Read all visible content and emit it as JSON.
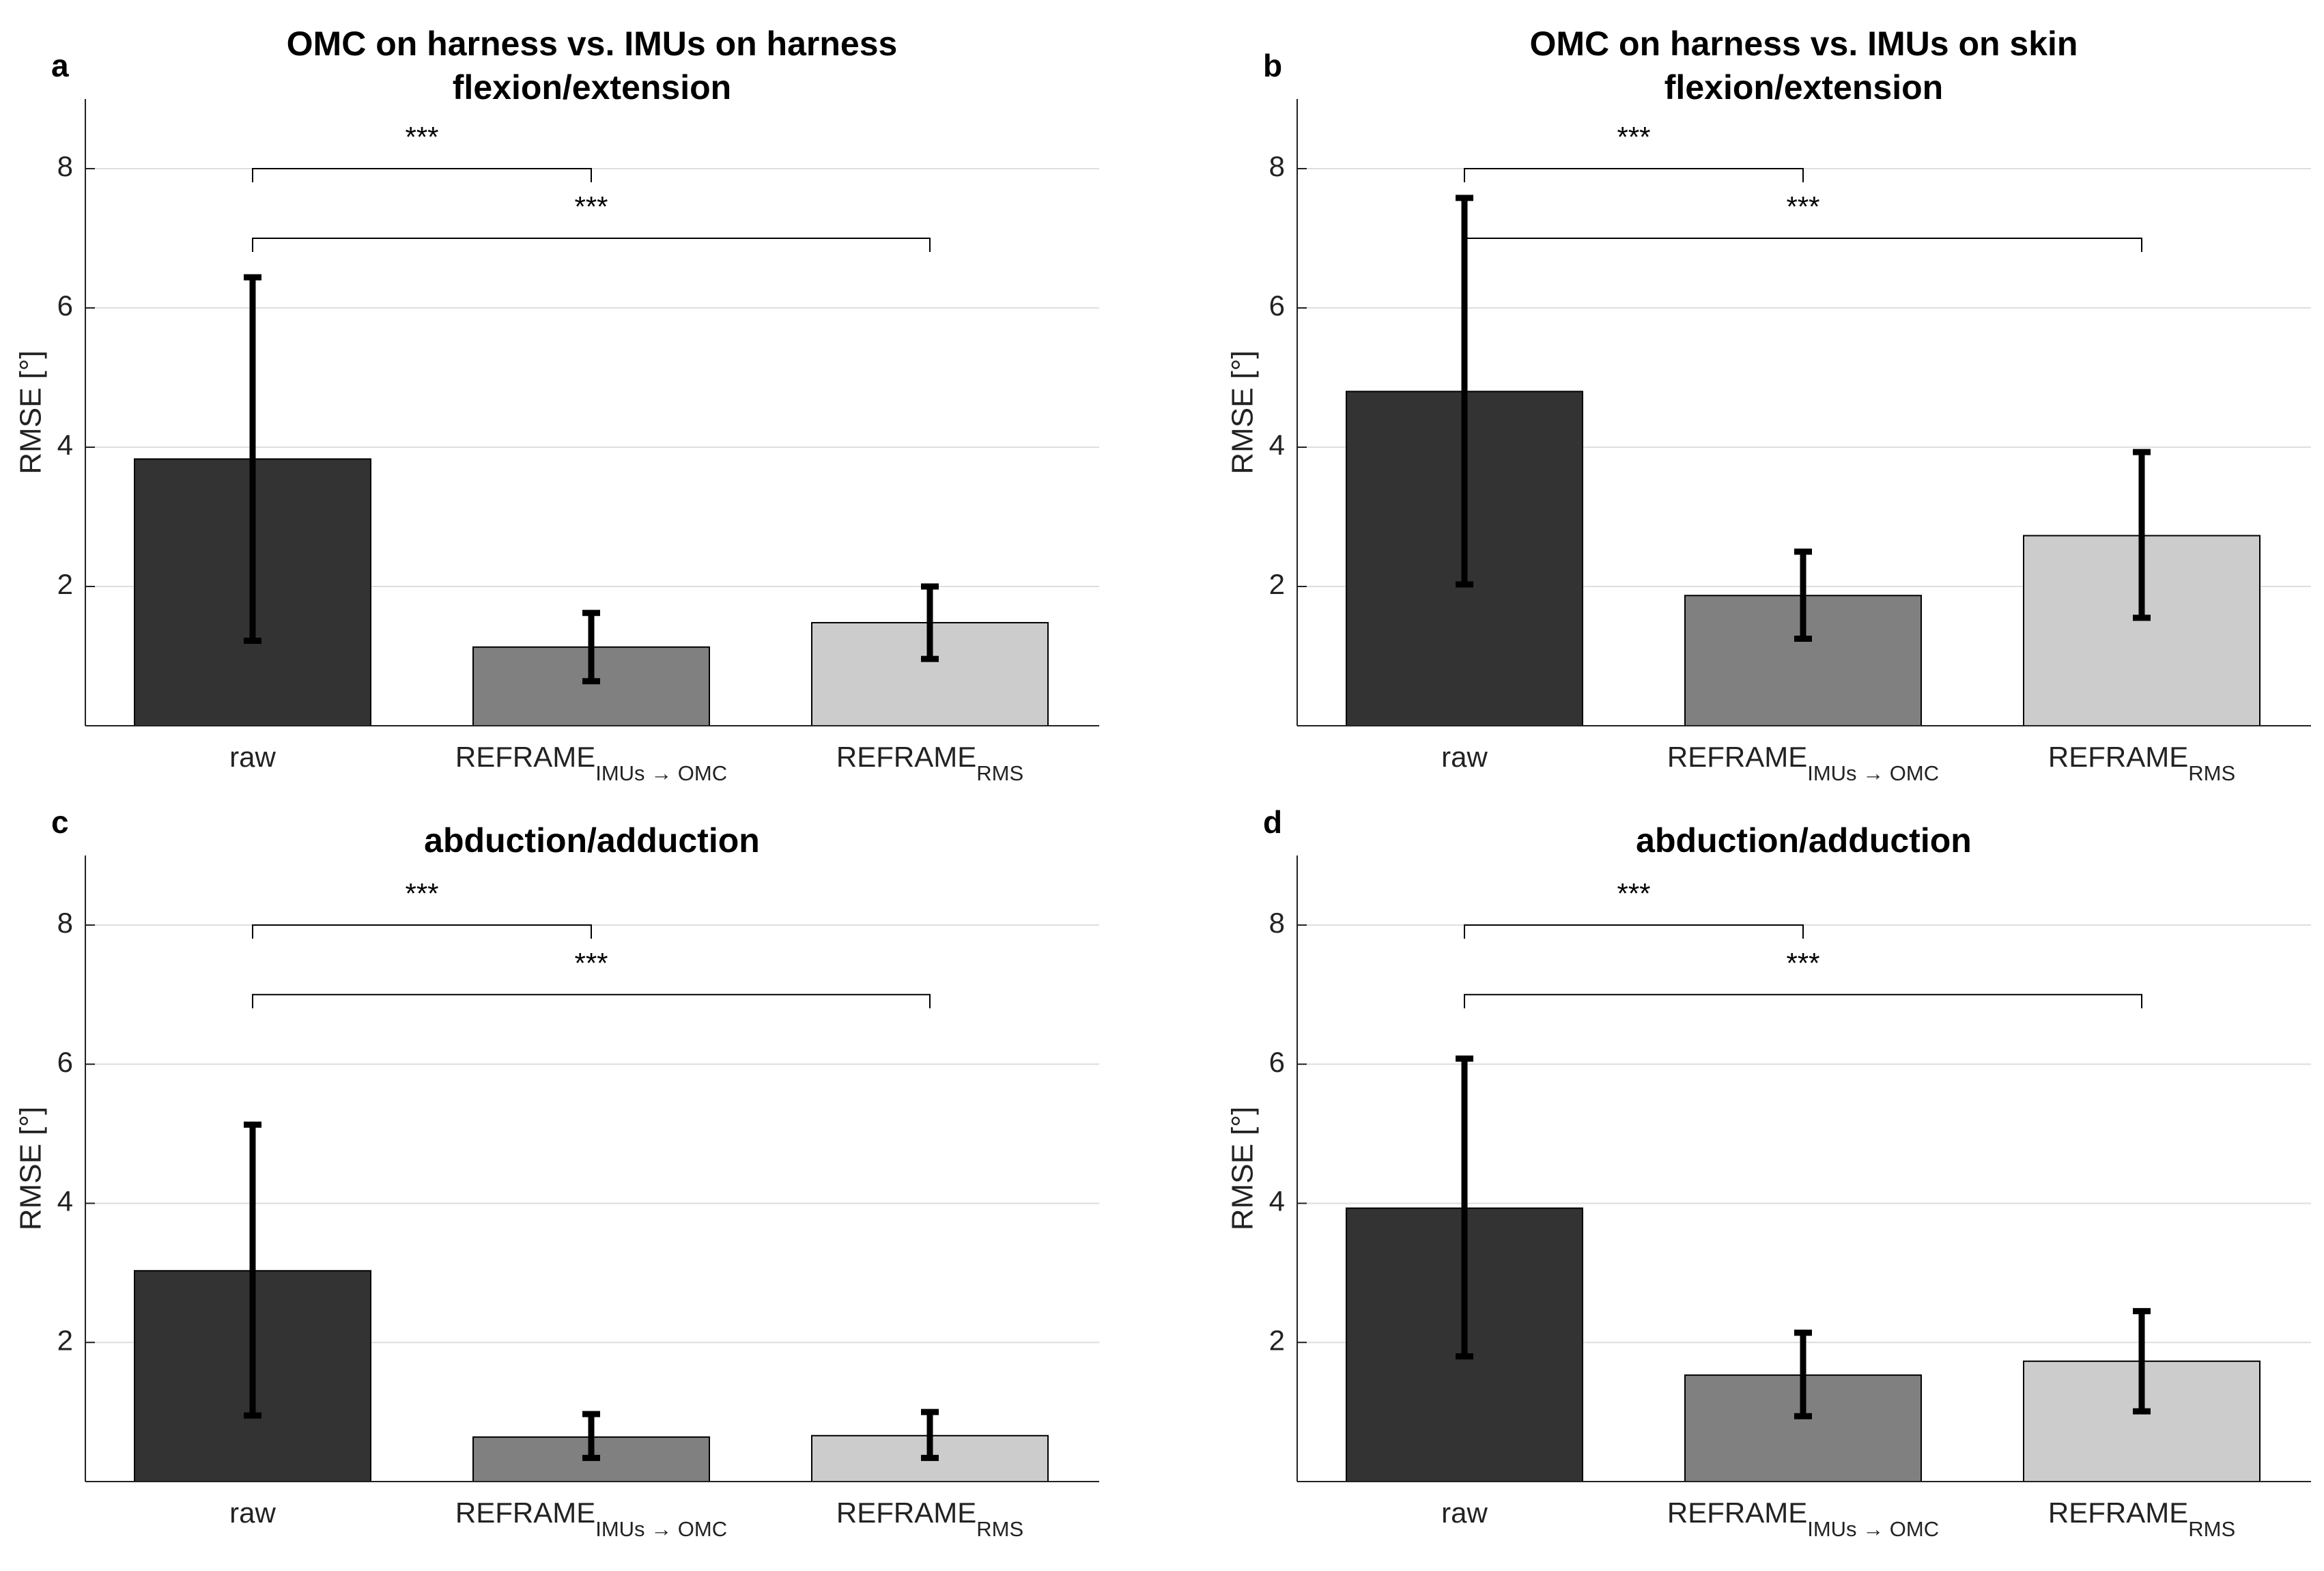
{
  "chart_data": [
    {
      "type": "bar",
      "panel": "a",
      "title": [
        "OMC on harness vs. IMUs on harness",
        "flexion/extension"
      ],
      "ylabel": "RMSE [°]",
      "ylim": [
        0,
        9
      ],
      "yticks": [
        2,
        4,
        6,
        8
      ],
      "categories": [
        {
          "main": "raw",
          "sub": ""
        },
        {
          "main": "REFRAME",
          "sub": "IMUs → OMC"
        },
        {
          "main": "REFRAME",
          "sub": "RMS"
        }
      ],
      "values": [
        3.83,
        1.13,
        1.48
      ],
      "err_low": [
        1.22,
        0.64,
        0.96
      ],
      "err_high": [
        6.44,
        1.62,
        2.0
      ],
      "colors": [
        "#333333",
        "#808080",
        "#cccccc"
      ],
      "significance": [
        {
          "from": 0,
          "to": 1,
          "y": 8,
          "label": "***"
        },
        {
          "from": 0,
          "to": 2,
          "y": 7,
          "label": "***"
        }
      ]
    },
    {
      "type": "bar",
      "panel": "b",
      "title": [
        "OMC on harness vs. IMUs on skin",
        "flexion/extension"
      ],
      "ylabel": "RMSE [°]",
      "ylim": [
        0,
        9
      ],
      "yticks": [
        2,
        4,
        6,
        8
      ],
      "categories": [
        {
          "main": "raw",
          "sub": ""
        },
        {
          "main": "REFRAME",
          "sub": "IMUs → OMC"
        },
        {
          "main": "REFRAME",
          "sub": "RMS"
        }
      ],
      "values": [
        4.8,
        1.87,
        2.73
      ],
      "err_low": [
        2.03,
        1.25,
        1.55
      ],
      "err_high": [
        7.58,
        2.5,
        3.93
      ],
      "colors": [
        "#333333",
        "#808080",
        "#cccccc"
      ],
      "significance": [
        {
          "from": 0,
          "to": 1,
          "y": 8,
          "label": "***"
        },
        {
          "from": 0,
          "to": 2,
          "y": 7,
          "label": "***"
        }
      ]
    },
    {
      "type": "bar",
      "panel": "c",
      "title": [
        "abduction/adduction"
      ],
      "ylabel": "RMSE [°]",
      "ylim": [
        0,
        9
      ],
      "yticks": [
        2,
        4,
        6,
        8
      ],
      "categories": [
        {
          "main": "raw",
          "sub": ""
        },
        {
          "main": "REFRAME",
          "sub": "IMUs → OMC"
        },
        {
          "main": "REFRAME",
          "sub": "RMS"
        }
      ],
      "values": [
        3.03,
        0.64,
        0.66
      ],
      "err_low": [
        0.95,
        0.34,
        0.34
      ],
      "err_high": [
        5.13,
        0.97,
        1.0
      ],
      "colors": [
        "#333333",
        "#808080",
        "#cccccc"
      ],
      "significance": [
        {
          "from": 0,
          "to": 1,
          "y": 8,
          "label": "***"
        },
        {
          "from": 0,
          "to": 2,
          "y": 7,
          "label": "***"
        }
      ]
    },
    {
      "type": "bar",
      "panel": "d",
      "title": [
        "abduction/adduction"
      ],
      "ylabel": "RMSE [°]",
      "ylim": [
        0,
        9
      ],
      "yticks": [
        2,
        4,
        6,
        8
      ],
      "categories": [
        {
          "main": "raw",
          "sub": ""
        },
        {
          "main": "REFRAME",
          "sub": "IMUs → OMC"
        },
        {
          "main": "REFRAME",
          "sub": "RMS"
        }
      ],
      "values": [
        3.93,
        1.53,
        1.73
      ],
      "err_low": [
        1.8,
        0.94,
        1.01
      ],
      "err_high": [
        6.08,
        2.14,
        2.45
      ],
      "colors": [
        "#333333",
        "#808080",
        "#cccccc"
      ],
      "significance": [
        {
          "from": 0,
          "to": 1,
          "y": 8,
          "label": "***"
        },
        {
          "from": 0,
          "to": 2,
          "y": 7,
          "label": "***"
        }
      ]
    }
  ]
}
